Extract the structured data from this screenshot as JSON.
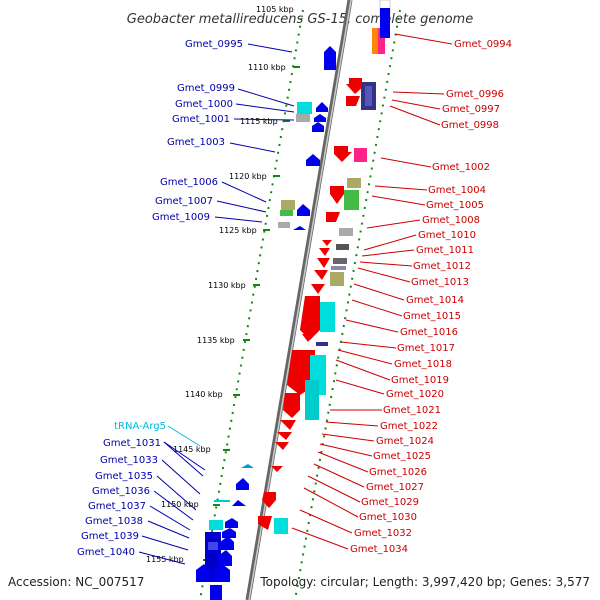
{
  "title": "Geobacter metallireducens GS-15, complete genome",
  "accession": "Accession: NC_007517",
  "topology": "Topology: circular; Length: 3,997,420 bp; Genes: 3,577",
  "colors": {
    "left_label": "#0000aa",
    "right_label": "#cc0000",
    "trna_label": "#00bbdd",
    "backbone": "#888888",
    "ruler": "#118811"
  },
  "ticks": [
    "1105 kbp",
    "1110 kbp",
    "1115 kbp",
    "1120 kbp",
    "1125 kbp",
    "1130 kbp",
    "1135 kbp",
    "1140 kbp",
    "1145 kbp",
    "1150 kbp",
    "1155 kbp"
  ],
  "left_labels": [
    "Gmet_0995",
    "Gmet_0999",
    "Gmet_1000",
    "Gmet_1001",
    "Gmet_1003",
    "Gmet_1006",
    "Gmet_1007",
    "Gmet_1009",
    "tRNA-Arg5",
    "Gmet_1031",
    "Gmet_1033",
    "Gmet_1035",
    "Gmet_1036",
    "Gmet_1037",
    "Gmet_1038",
    "Gmet_1039",
    "Gmet_1040"
  ],
  "right_labels": [
    "Gmet_0994",
    "Gmet_0996",
    "Gmet_0997",
    "Gmet_0998",
    "Gmet_1002",
    "Gmet_1004",
    "Gmet_1005",
    "Gmet_1008",
    "Gmet_1010",
    "Gmet_1011",
    "Gmet_1012",
    "Gmet_1013",
    "Gmet_1014",
    "Gmet_1015",
    "Gmet_1016",
    "Gmet_1017",
    "Gmet_1018",
    "Gmet_1019",
    "Gmet_1020",
    "Gmet_1021",
    "Gmet_1022",
    "Gmet_1024",
    "Gmet_1025",
    "Gmet_1026",
    "Gmet_1027",
    "Gmet_1029",
    "Gmet_1030",
    "Gmet_1032",
    "Gmet_1034"
  ]
}
